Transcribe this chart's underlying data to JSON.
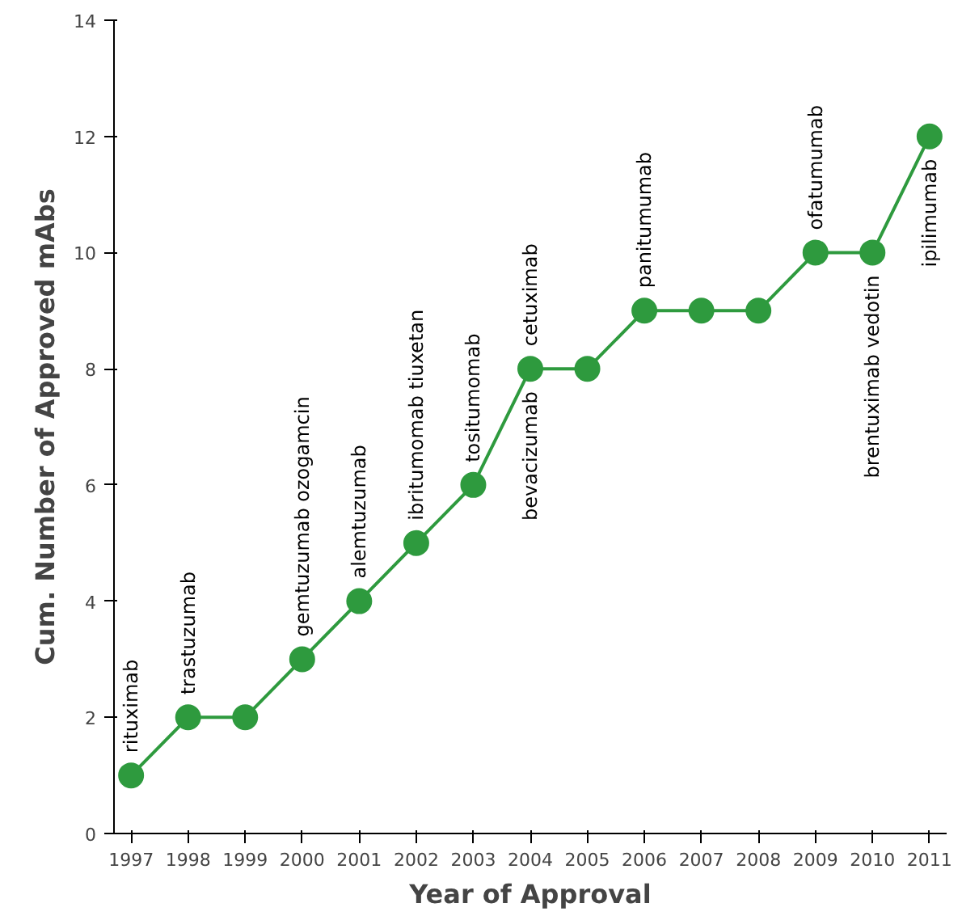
{
  "chart_data": {
    "type": "line",
    "xlabel": "Year of Approval",
    "ylabel": "Cum. Number of Approved mAbs",
    "x": [
      1997,
      1998,
      1999,
      2000,
      2001,
      2002,
      2003,
      2004,
      2005,
      2006,
      2007,
      2008,
      2009,
      2010,
      2011
    ],
    "series": [
      {
        "color": "#2e9a3e",
        "values": [
          1,
          2,
          2,
          3,
          4,
          5,
          6,
          8,
          8,
          9,
          9,
          9,
          10,
          10,
          12
        ]
      }
    ],
    "xlim": [
      1996.7,
      2011.3
    ],
    "xticks": [
      1997,
      1998,
      1999,
      2000,
      2001,
      2002,
      2003,
      2004,
      2005,
      2006,
      2007,
      2008,
      2009,
      2010,
      2011
    ],
    "ylim": [
      0,
      14
    ],
    "yticks": [
      0,
      2,
      4,
      6,
      8,
      10,
      12,
      14
    ],
    "grid": false,
    "marker": "circle",
    "line_style": "solid",
    "annotations": [
      {
        "text": "rituximab",
        "x": 1997,
        "y": 1
      },
      {
        "text": "trastuzumab",
        "x": 1998,
        "y": 2
      },
      {
        "text": "gemtuzumab ozogamcin",
        "x": 2000,
        "y": 3
      },
      {
        "text": "alemtuzumab",
        "x": 2001,
        "y": 4
      },
      {
        "text": "ibritumomab tiuxetan",
        "x": 2002,
        "y": 5
      },
      {
        "text": "tositumomab",
        "x": 2003,
        "y": 6
      },
      {
        "text": "bevacizumab",
        "x": 2004,
        "y": 8
      },
      {
        "text": "cetuximab",
        "x": 2004,
        "y": 8
      },
      {
        "text": "panitumumab",
        "x": 2006,
        "y": 9
      },
      {
        "text": "ofatumumab",
        "x": 2009,
        "y": 10
      },
      {
        "text": "brentuximab vedotin",
        "x": 2010,
        "y": 10
      },
      {
        "text": "ipilimumab",
        "x": 2011,
        "y": 12
      }
    ]
  }
}
